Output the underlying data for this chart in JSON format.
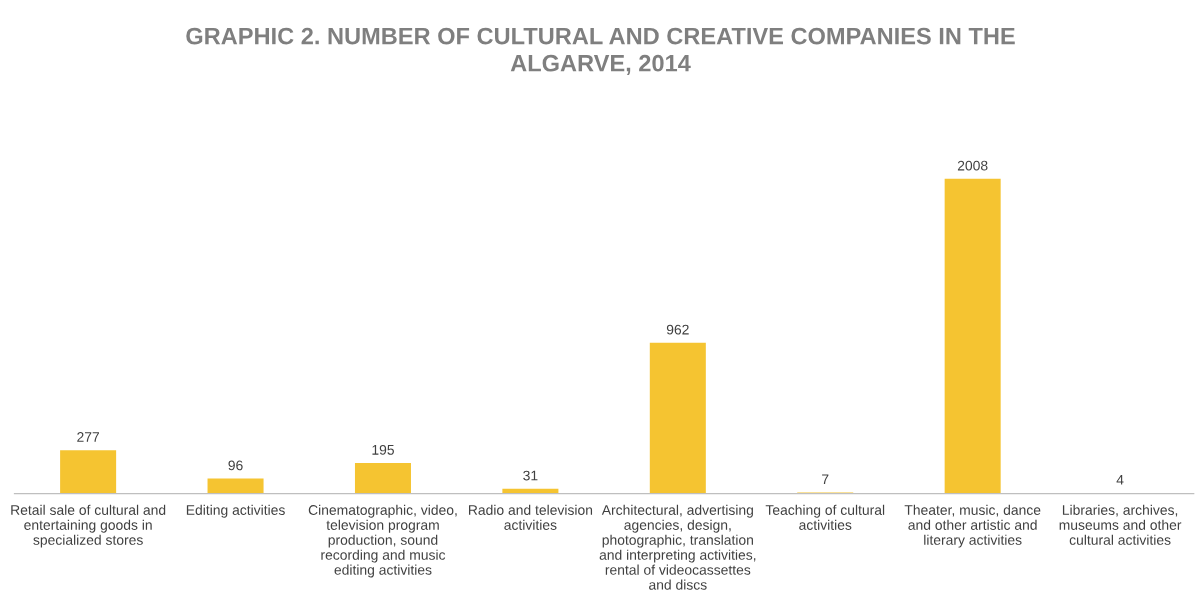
{
  "chart_data": {
    "type": "bar",
    "title": "GRAPHIC 2. NUMBER OF CULTURAL AND CREATIVE COMPANIES IN THE\nALGARVE, 2014",
    "categories": [
      "Retail sale of cultural and\nentertaining goods in\nspecialized stores",
      "Editing activities",
      "Cinematographic, video,\ntelevision program\nproduction, sound\nrecording and music\nediting activities",
      "Radio and television\nactivities",
      "Architectural, advertising\nagencies, design,\nphotographic, translation\nand interpreting activities,\nrental of videocassettes\nand discs",
      "Teaching of cultural\nactivities",
      "Theater, music, dance\nand other artistic and\nliterary activities",
      "Libraries, archives,\nmuseums and other\ncultural activities"
    ],
    "values": [
      277,
      96,
      195,
      31,
      962,
      7,
      2008,
      4
    ],
    "color": "#f5c431",
    "data_labels": true,
    "grid": false,
    "legend": false
  }
}
